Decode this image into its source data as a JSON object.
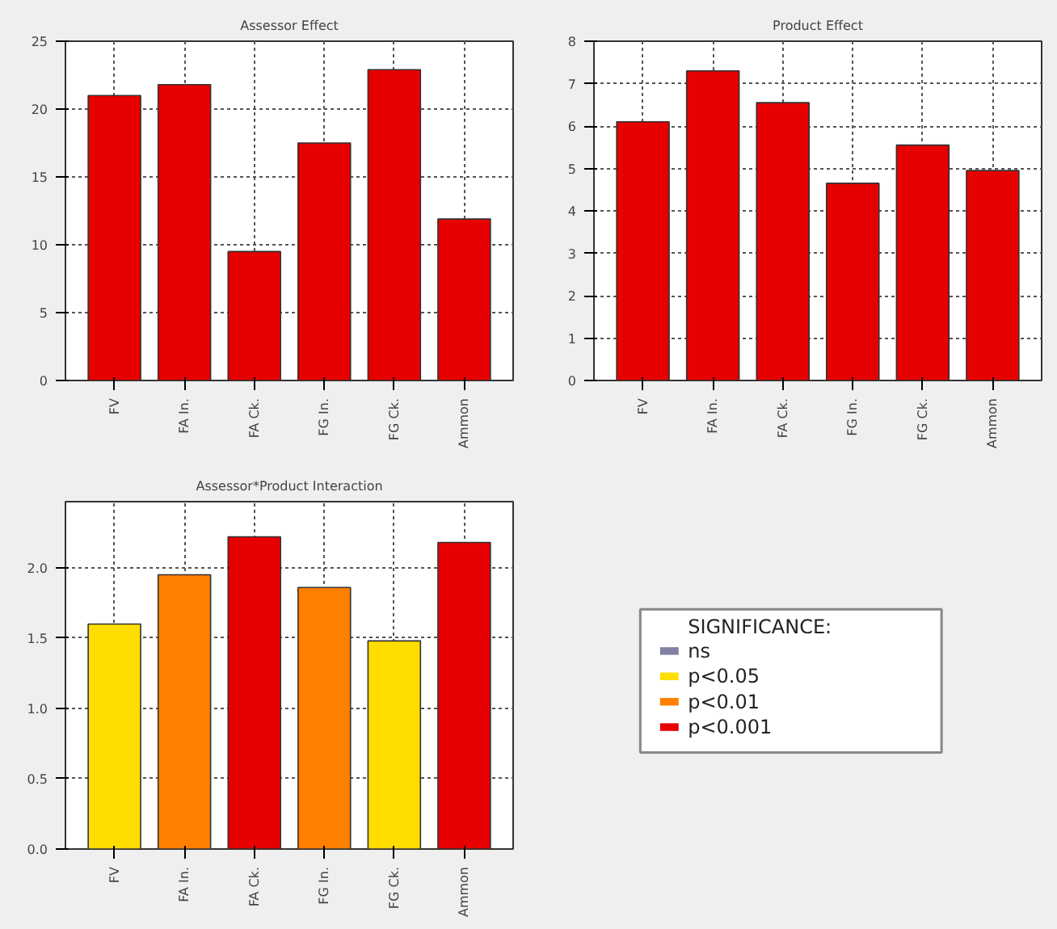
{
  "chart_data": [
    {
      "type": "bar",
      "title": "Assessor Effect",
      "categories": [
        "FV",
        "FA In.",
        "FA Ck.",
        "FG In.",
        "FG Ck.",
        "Ammon"
      ],
      "values": [
        21.0,
        21.8,
        9.5,
        17.5,
        22.9,
        11.9
      ],
      "color": "#e60000",
      "ylim": [
        0,
        25
      ],
      "yticks": [
        0,
        5,
        10,
        15,
        20,
        25
      ],
      "grid": true
    },
    {
      "type": "bar",
      "title": "Product Effect",
      "categories": [
        "FV",
        "FA In.",
        "FA Ck.",
        "FG In.",
        "FG Ck.",
        "Ammon"
      ],
      "values": [
        6.1,
        7.3,
        6.55,
        4.65,
        5.55,
        4.95
      ],
      "color": "#e60000",
      "ylim": [
        0,
        8
      ],
      "yticks": [
        0,
        1,
        2,
        3,
        4,
        5,
        6,
        7,
        8
      ],
      "grid": true
    },
    {
      "type": "bar",
      "title": "Assessor*Product Interaction",
      "categories": [
        "FV",
        "FA In.",
        "FA Ck.",
        "FG In.",
        "FG Ck.",
        "Ammon"
      ],
      "legend_title": "SIGNIFICANCE:",
      "legend": "right",
      "ylim": [
        0,
        2.47
      ],
      "yticks": [
        {
          "value": 0,
          "label": "0.0"
        },
        {
          "value": 0.5,
          "label": "0.5"
        },
        {
          "value": 1.0,
          "label": "1.0"
        },
        {
          "value": 1.5,
          "label": "1.5"
        },
        {
          "value": 2.0,
          "label": "2.0"
        }
      ],
      "grid": true,
      "series": [
        {
          "name": "ns",
          "color": "#8080a0",
          "values": [
            null,
            null,
            null,
            null,
            null,
            null
          ]
        },
        {
          "name": "p<0.05",
          "color": "#ffdd00",
          "values": [
            1.6,
            null,
            null,
            null,
            1.48,
            null
          ]
        },
        {
          "name": "p<0.01",
          "color": "#ff8000",
          "values": [
            null,
            1.95,
            null,
            1.86,
            null,
            null
          ]
        },
        {
          "name": "p<0.001",
          "color": "#e60000",
          "values": [
            null,
            null,
            2.22,
            null,
            null,
            2.18
          ]
        }
      ]
    }
  ]
}
